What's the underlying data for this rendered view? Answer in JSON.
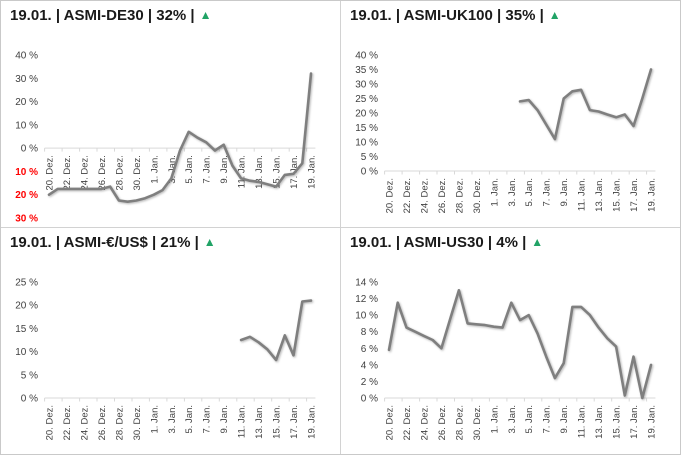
{
  "icons": {
    "trend_up": "▲"
  },
  "colors": {
    "trend_up_green": "#21a366",
    "line_gray": "#7f7f7f",
    "axis_label": "#404040",
    "negative_label_red": "#ff0000",
    "axis_line": "#d9d9d9",
    "title_text": "#1a1a1a"
  },
  "chart_data": [
    {
      "type": "line",
      "title": "19.01. | ASMI-DE30 | 32% |",
      "trend": "up",
      "ylabel_format": "percent, negatives shown red without minus sign",
      "ylim": [
        -30,
        40
      ],
      "ytick_step": 10,
      "ytick_labels": [
        "40 %",
        "30 %",
        "20 %",
        "10 %",
        "0 %",
        "10 %",
        "20 %",
        "30 %"
      ],
      "x_tick_labels": [
        "20. Dez.",
        "22. Dez.",
        "24. Dez.",
        "26. Dez.",
        "28. Dez.",
        "30. Dez.",
        "1. Jan.",
        "3. Jan.",
        "5. Jan.",
        "7. Jan.",
        "9. Jan.",
        "11. Jan.",
        "13. Jan.",
        "15. Jan.",
        "17. Jan.",
        "19. Jan."
      ],
      "x_note": "daily points, 20. Dez. to 19. Jan.",
      "values": [
        -20,
        -17.5,
        -17.5,
        -17.5,
        -17.5,
        -17.5,
        -17.5,
        -16.5,
        -22.5,
        -23,
        -22.5,
        -21.5,
        -20,
        -18,
        -13,
        -1,
        7,
        4.5,
        2.5,
        -1,
        1.5,
        -7.5,
        -13,
        -14,
        -14.5,
        -15.5,
        -16.5,
        -11.5,
        -11,
        -6.5,
        32
      ],
      "line_color": "#7f7f7f",
      "grid": "zero axis line only",
      "legend": "none"
    },
    {
      "type": "line",
      "title": "19.01. | ASMI-UK100 | 35% |",
      "trend": "up",
      "ylim": [
        0,
        40
      ],
      "ytick_step": 5,
      "ytick_labels": [
        "40 %",
        "35 %",
        "30 %",
        "25 %",
        "20 %",
        "15 %",
        "10 %",
        "5 %",
        "0 %"
      ],
      "x_tick_labels": [
        "20. Dez.",
        "22. Dez.",
        "24. Dez.",
        "26. Dez.",
        "28. Dez.",
        "30. Dez.",
        "1. Jan.",
        "3. Jan.",
        "5. Jan.",
        "7. Jan.",
        "9. Jan.",
        "11. Jan.",
        "13. Jan.",
        "15. Jan.",
        "17. Jan.",
        "19. Jan."
      ],
      "x_note": "daily points, series starts 4. Jan.",
      "values": [
        null,
        null,
        null,
        null,
        null,
        null,
        null,
        null,
        null,
        null,
        null,
        null,
        null,
        null,
        null,
        24,
        24.5,
        21,
        16,
        11,
        25,
        27.5,
        28,
        21,
        20.5,
        19.5,
        18.5,
        19.5,
        15.5,
        25,
        35
      ],
      "line_color": "#7f7f7f",
      "grid": "zero axis line only",
      "legend": "none"
    },
    {
      "type": "line",
      "title": "19.01. | ASMI-€/US$ | 21% |",
      "trend": "up",
      "ylim": [
        0,
        25
      ],
      "ytick_step": 5,
      "ytick_labels": [
        "25 %",
        "20 %",
        "15 %",
        "10 %",
        "5 %",
        "0 %"
      ],
      "x_tick_labels": [
        "20. Dez.",
        "22. Dez.",
        "24. Dez.",
        "26. Dez.",
        "28. Dez.",
        "30. Dez.",
        "1. Jan.",
        "3. Jan.",
        "5. Jan.",
        "7. Jan.",
        "9. Jan.",
        "11. Jan.",
        "13. Jan.",
        "15. Jan.",
        "17. Jan.",
        "19. Jan."
      ],
      "x_note": "daily points, series starts 11. Jan.",
      "values": [
        null,
        null,
        null,
        null,
        null,
        null,
        null,
        null,
        null,
        null,
        null,
        null,
        null,
        null,
        null,
        null,
        null,
        null,
        null,
        null,
        null,
        null,
        12.5,
        13.2,
        12,
        10.5,
        8.2,
        13.5,
        9.2,
        20.8,
        21
      ],
      "line_color": "#7f7f7f",
      "grid": "zero axis line only",
      "legend": "none"
    },
    {
      "type": "line",
      "title": "19.01. | ASMI-US30 | 4% |",
      "trend": "up",
      "ylim": [
        0,
        14
      ],
      "ytick_step": 2,
      "ytick_labels": [
        "14 %",
        "12 %",
        "10 %",
        "8 %",
        "6 %",
        "4 %",
        "2 %",
        "0 %"
      ],
      "x_tick_labels": [
        "20. Dez.",
        "22. Dez.",
        "24. Dez.",
        "26. Dez.",
        "28. Dez.",
        "30. Dez.",
        "1. Jan.",
        "3. Jan.",
        "5. Jan.",
        "7. Jan.",
        "9. Jan.",
        "11. Jan.",
        "13. Jan.",
        "15. Jan.",
        "17. Jan.",
        "19. Jan."
      ],
      "x_note": "daily points, 20. Dez. to 19. Jan.",
      "values": [
        5.8,
        11.5,
        8.5,
        8,
        7.5,
        7,
        6,
        9.5,
        13,
        9,
        8.9,
        8.8,
        8.6,
        8.5,
        11.5,
        9.4,
        10,
        7.8,
        5,
        2.4,
        4.2,
        11,
        11,
        10,
        8.5,
        7.2,
        6.2,
        0.3,
        5,
        0,
        4
      ],
      "line_color": "#7f7f7f",
      "grid": "zero axis line only",
      "legend": "none"
    }
  ]
}
